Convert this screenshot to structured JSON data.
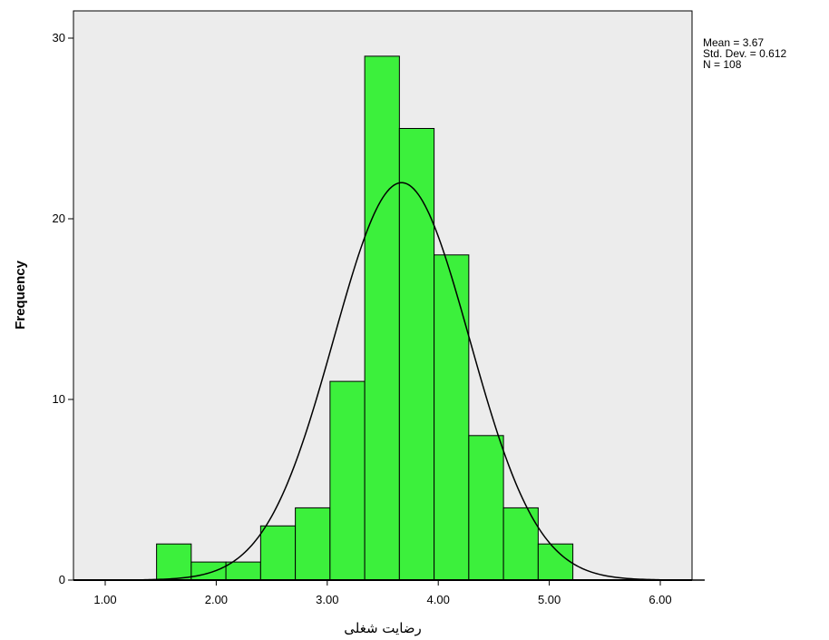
{
  "chart_data": {
    "type": "bar",
    "subtype": "histogram",
    "title": "",
    "xlabel": "رضایت شغلی",
    "ylabel": "Frequency",
    "x_ticks": [
      "1.00",
      "2.00",
      "3.00",
      "4.00",
      "5.00",
      "6.00"
    ],
    "y_ticks": [
      "0",
      "10",
      "20",
      "30"
    ],
    "xlim": [
      0.7,
      6.9
    ],
    "ylim": [
      0,
      30.5
    ],
    "bin_width": 0.3125,
    "bins": [
      {
        "start": 1.4625,
        "end": 1.775,
        "count": 2
      },
      {
        "start": 1.775,
        "end": 2.0875,
        "count": 1
      },
      {
        "start": 2.0875,
        "end": 2.4,
        "count": 1
      },
      {
        "start": 2.4,
        "end": 2.7125,
        "count": 3
      },
      {
        "start": 2.7125,
        "end": 3.025,
        "count": 4
      },
      {
        "start": 3.025,
        "end": 3.3375,
        "count": 11
      },
      {
        "start": 3.3375,
        "end": 3.65,
        "count": 29
      },
      {
        "start": 3.65,
        "end": 3.9625,
        "count": 25
      },
      {
        "start": 3.9625,
        "end": 4.275,
        "count": 18
      },
      {
        "start": 4.275,
        "end": 4.5875,
        "count": 8
      },
      {
        "start": 4.5875,
        "end": 4.9,
        "count": 4
      },
      {
        "start": 4.9,
        "end": 5.2125,
        "count": 2
      }
    ],
    "normal_curve": {
      "mean": 3.67,
      "sd": 0.612,
      "n": 108
    },
    "bar_color": "#3cf03c",
    "plot_background": "#ececec",
    "grid": false,
    "stats_labels": [
      "Mean = 3.67",
      "Std. Dev. = 0.612",
      "N = 108"
    ]
  }
}
